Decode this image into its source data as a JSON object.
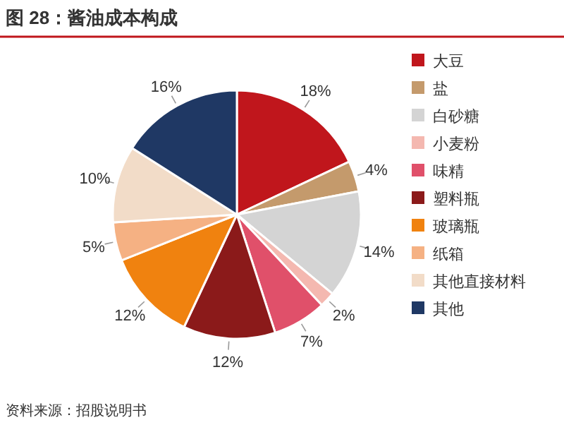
{
  "chart_data": {
    "type": "pie",
    "title": "图 28：酱油成本构成",
    "categories": [
      "大豆",
      "盐",
      "白砂糖",
      "小麦粉",
      "味精",
      "塑料瓶",
      "玻璃瓶",
      "纸箱",
      "其他直接材料",
      "其他"
    ],
    "values": [
      18,
      4,
      14,
      2,
      7,
      12,
      12,
      5,
      10,
      16
    ],
    "colors": [
      "#c0161c",
      "#c49a6c",
      "#d4d4d4",
      "#f4b8b0",
      "#e0506a",
      "#8b1a1a",
      "#f0820f",
      "#f5b183",
      "#f2dcc8",
      "#1f3864"
    ],
    "value_labels": [
      "18%",
      "4%",
      "14%",
      "2%",
      "7%",
      "12%",
      "12%",
      "5%",
      "10%",
      "16%"
    ],
    "legend": "right",
    "annotations": [
      "资料来源：招股说明书"
    ]
  }
}
